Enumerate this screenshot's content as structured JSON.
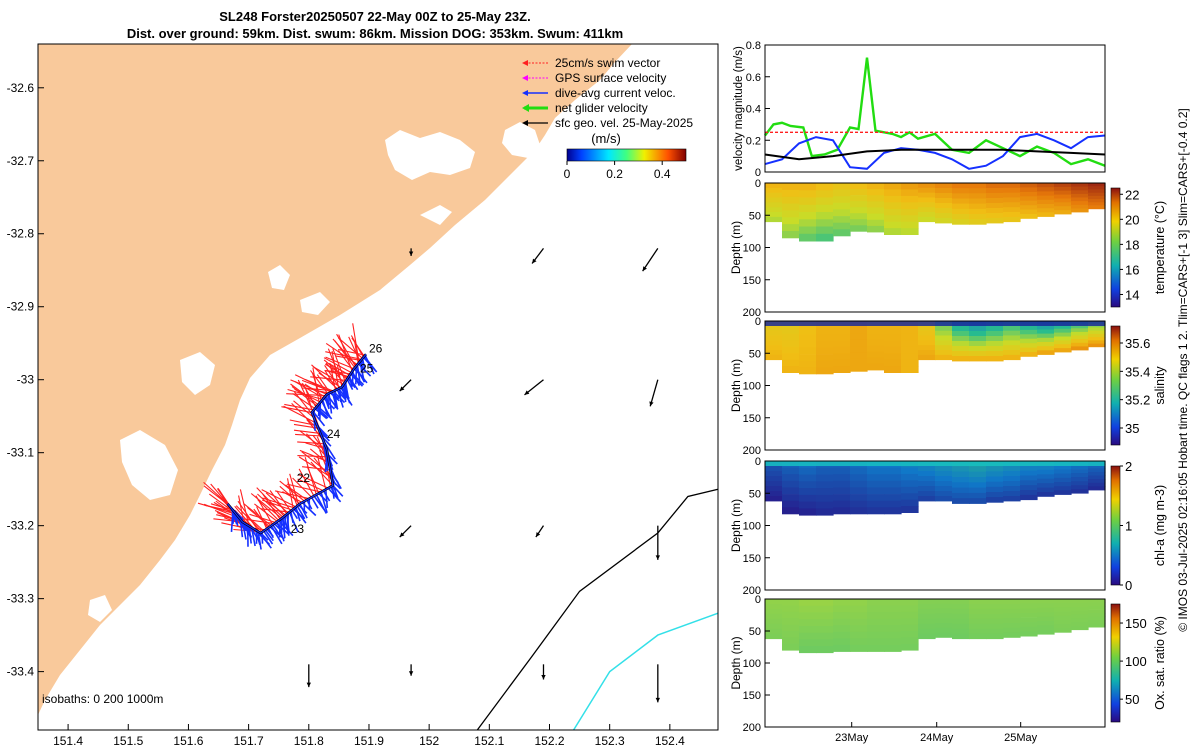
{
  "header": {
    "title_line1": "SL248 Forster20250507 22-May 00Z to 25-May 23Z.",
    "title_line2": "Dist. over ground: 59km. Dist. swum: 86km. Mission DOG: 353km. Swum: 411km"
  },
  "side_note": "© IMOS 03-Jul-2025 02:16:05 Hobart time. QC flags 1  2. Tlim=CARS+[-1 3] Slim=CARS+[-0.4 0.2]",
  "colors": {
    "land": "#F9C99B",
    "glider_swim": "#ff2020",
    "glider_current": "#1530ff",
    "track": "#000000",
    "isobath_200": "#000000",
    "isobath_1000": "#33e0e8",
    "net_velocity": "#22dd11"
  },
  "chart_data": [
    {
      "id": "map",
      "type": "scatter",
      "xlabel": "",
      "ylabel": "",
      "xlim": [
        151.35,
        152.48
      ],
      "ylim": [
        -33.48,
        -32.54
      ],
      "x_ticks": [
        "151.4",
        "151.5",
        "151.6",
        "151.7",
        "151.8",
        "151.9",
        "152",
        "152.1",
        "152.2",
        "152.3",
        "152.4"
      ],
      "y_ticks": [
        "-32.6",
        "-32.7",
        "-32.8",
        "-32.9",
        "-33",
        "-33.1",
        "-33.2",
        "-33.3",
        "-33.4"
      ],
      "legend": {
        "placement": "top-right",
        "entries": [
          "25cm/s swim vector",
          "GPS surface velocity",
          "dive-avg current veloc.",
          "net glider velocity",
          "sfc geo. vel. 25-May-2025"
        ]
      },
      "colorbar": {
        "label": "(m/s)",
        "ticks": [
          "0",
          "0.2",
          "0.4"
        ],
        "range": [
          0,
          0.5
        ]
      },
      "isobaths_label": "isobaths: 0   200  1000m",
      "glider_track": [
        {
          "lon": 151.665,
          "lat": -33.17
        },
        {
          "lon": 151.69,
          "lat": -33.195
        },
        {
          "lon": 151.72,
          "lat": -33.21
        },
        {
          "lon": 151.755,
          "lat": -33.19
        },
        {
          "lon": 151.785,
          "lat": -33.17
        },
        {
          "lon": 151.84,
          "lat": -33.145
        },
        {
          "lon": 151.83,
          "lat": -33.095
        },
        {
          "lon": 151.805,
          "lat": -33.045
        },
        {
          "lon": 151.83,
          "lat": -33.02
        },
        {
          "lon": 151.855,
          "lat": -33.01
        },
        {
          "lon": 151.875,
          "lat": -32.985
        },
        {
          "lon": 151.895,
          "lat": -32.965
        }
      ],
      "day_labels": [
        {
          "label": "22",
          "lon": 151.78,
          "lat": -33.14
        },
        {
          "label": "23",
          "lon": 151.77,
          "lat": -33.21
        },
        {
          "label": "24",
          "lon": 151.83,
          "lat": -33.08
        },
        {
          "label": "25",
          "lon": 151.885,
          "lat": -32.99
        },
        {
          "label": "26",
          "lon": 151.9,
          "lat": -32.963
        }
      ],
      "geo_arrows": [
        {
          "lon": 151.97,
          "lat": -32.82,
          "u": 0.0,
          "v": -0.02
        },
        {
          "lon": 152.19,
          "lat": -32.82,
          "u": -0.03,
          "v": -0.04
        },
        {
          "lon": 152.38,
          "lat": -32.82,
          "u": -0.04,
          "v": -0.06
        },
        {
          "lon": 151.97,
          "lat": -33.0,
          "u": -0.03,
          "v": -0.03
        },
        {
          "lon": 152.19,
          "lat": -33.0,
          "u": -0.05,
          "v": -0.04
        },
        {
          "lon": 152.38,
          "lat": -33.0,
          "u": -0.02,
          "v": -0.07
        },
        {
          "lon": 151.97,
          "lat": -33.2,
          "u": -0.03,
          "v": -0.03
        },
        {
          "lon": 152.19,
          "lat": -33.2,
          "u": -0.02,
          "v": -0.03
        },
        {
          "lon": 152.38,
          "lat": -33.2,
          "u": 0.0,
          "v": -0.09
        },
        {
          "lon": 151.97,
          "lat": -33.39,
          "u": 0.0,
          "v": -0.03
        },
        {
          "lon": 152.19,
          "lat": -33.39,
          "u": 0.0,
          "v": -0.04
        },
        {
          "lon": 152.38,
          "lat": -33.39,
          "u": 0.0,
          "v": -0.1
        },
        {
          "lon": 151.8,
          "lat": -33.39,
          "u": 0.0,
          "v": -0.06
        }
      ],
      "isobath_200": [
        {
          "lon": 152.08,
          "lat": -33.48
        },
        {
          "lon": 152.17,
          "lat": -33.38
        },
        {
          "lon": 152.25,
          "lat": -33.29
        },
        {
          "lon": 152.38,
          "lat": -33.21
        },
        {
          "lon": 152.43,
          "lat": -33.16
        },
        {
          "lon": 152.48,
          "lat": -33.15
        }
      ],
      "isobath_1000": [
        {
          "lon": 152.24,
          "lat": -33.48
        },
        {
          "lon": 152.3,
          "lat": -33.4
        },
        {
          "lon": 152.38,
          "lat": -33.35
        },
        {
          "lon": 152.48,
          "lat": -33.32
        }
      ]
    },
    {
      "id": "velocity",
      "type": "line",
      "ylabel": "velocity magnitude (m/s)",
      "xlim": [
        0,
        4
      ],
      "ylim": [
        0,
        0.8
      ],
      "y_ticks": [
        "0",
        "0.2",
        "0.4",
        "0.6",
        "0.8"
      ],
      "series": [
        {
          "name": "net glider velocity",
          "color": "#22dd11",
          "x": [
            0,
            0.1,
            0.2,
            0.3,
            0.45,
            0.55,
            0.7,
            0.85,
            1.0,
            1.1,
            1.2,
            1.3,
            1.4,
            1.5,
            1.6,
            1.7,
            1.8,
            2.0,
            2.2,
            2.4,
            2.6,
            2.8,
            3.0,
            3.2,
            3.4,
            3.6,
            3.8,
            4.0
          ],
          "y": [
            0.23,
            0.3,
            0.31,
            0.29,
            0.28,
            0.1,
            0.11,
            0.14,
            0.28,
            0.27,
            0.72,
            0.26,
            0.25,
            0.24,
            0.22,
            0.25,
            0.21,
            0.24,
            0.14,
            0.12,
            0.2,
            0.15,
            0.1,
            0.16,
            0.12,
            0.05,
            0.08,
            0.04
          ]
        },
        {
          "name": "dive-avg current veloc.",
          "color": "#1530ff",
          "x": [
            0,
            0.2,
            0.4,
            0.6,
            0.8,
            1.0,
            1.2,
            1.4,
            1.6,
            1.8,
            2.0,
            2.2,
            2.4,
            2.6,
            2.8,
            3.0,
            3.2,
            3.4,
            3.6,
            3.8,
            4.0
          ],
          "y": [
            0.05,
            0.08,
            0.18,
            0.22,
            0.2,
            0.03,
            0.02,
            0.12,
            0.15,
            0.14,
            0.12,
            0.08,
            0.02,
            0.04,
            0.1,
            0.22,
            0.24,
            0.2,
            0.15,
            0.22,
            0.23
          ]
        },
        {
          "name": "swim speed",
          "color": "#000000",
          "x": [
            0,
            0.4,
            0.8,
            1.2,
            1.6,
            2.0,
            2.4,
            2.8,
            3.2,
            3.6,
            4.0
          ],
          "y": [
            0.11,
            0.08,
            0.1,
            0.13,
            0.14,
            0.14,
            0.14,
            0.14,
            0.13,
            0.12,
            0.11
          ]
        },
        {
          "name": "25cm/s reference",
          "color": "#ff2020",
          "x": [
            0,
            4.0
          ],
          "y": [
            0.25,
            0.25
          ]
        }
      ]
    },
    {
      "id": "temperature",
      "type": "heatmap",
      "ylabel": "Depth (m)",
      "colorbar_label": "temperature (°C)",
      "ylim": [
        200,
        0
      ],
      "y_ticks": [
        "0",
        "50",
        "100",
        "150",
        "200"
      ],
      "colorbar_ticks": [
        "14",
        "16",
        "18",
        "20",
        "22"
      ],
      "clim": [
        13,
        22.5
      ],
      "profile_depth": [
        40,
        60,
        85,
        90,
        82,
        75,
        74,
        76,
        80,
        60,
        55,
        62,
        64,
        62,
        60,
        55,
        52,
        48,
        45,
        40,
        38
      ],
      "surface_value": [
        20,
        20,
        20,
        19.8,
        19.6,
        19.8,
        20,
        20.2,
        20.4,
        20.6,
        20.8,
        21,
        21,
        21.2,
        21.2,
        21.4,
        21.6,
        21.8,
        22,
        22.2,
        22.4
      ],
      "bottom_value": [
        18.5,
        18.2,
        17.8,
        17.6,
        17.8,
        18,
        18.2,
        18.5,
        18.6,
        18.8,
        19,
        19.2,
        19.4,
        19.5,
        19.6,
        19.8,
        20,
        20.2,
        20.6,
        21,
        21.4
      ]
    },
    {
      "id": "salinity",
      "type": "heatmap",
      "ylabel": "Depth (m)",
      "colorbar_label": "salinity",
      "ylim": [
        200,
        0
      ],
      "y_ticks": [
        "0",
        "50",
        "100",
        "150",
        "200"
      ],
      "colorbar_ticks": [
        "35",
        "35.2",
        "35.4",
        "35.6"
      ],
      "clim": [
        34.88,
        35.72
      ],
      "profile_depth": [
        40,
        60,
        80,
        82,
        80,
        78,
        76,
        74,
        80,
        60,
        55,
        60,
        62,
        62,
        60,
        55,
        52,
        48,
        45,
        40,
        38
      ],
      "surface_value": [
        35.45,
        35.45,
        35.48,
        35.5,
        35.5,
        35.52,
        35.5,
        35.5,
        35.5,
        35.45,
        35.3,
        35.2,
        35.15,
        35.2,
        35.25,
        35.2,
        35.15,
        35.2,
        35.25,
        35.3,
        35.3
      ],
      "bottom_value": [
        35.5,
        35.5,
        35.5,
        35.52,
        35.52,
        35.52,
        35.52,
        35.52,
        35.5,
        35.52,
        35.5,
        35.5,
        35.5,
        35.5,
        35.5,
        35.5,
        35.52,
        35.52,
        35.55,
        35.55,
        35.55
      ]
    },
    {
      "id": "chl",
      "type": "heatmap",
      "ylabel": "Depth (m)",
      "colorbar_label": "chl-a (mg m-3)",
      "ylim": [
        200,
        0
      ],
      "y_ticks": [
        "0",
        "50",
        "100",
        "150",
        "200"
      ],
      "colorbar_ticks": [
        "0",
        "1",
        "2"
      ],
      "clim": [
        0,
        2
      ],
      "profile_depth": [
        40,
        62,
        82,
        84,
        82,
        82,
        82,
        82,
        80,
        62,
        56,
        62,
        66,
        64,
        62,
        60,
        55,
        52,
        50,
        45,
        40
      ],
      "surface_value": [
        0.35,
        0.4,
        0.45,
        0.4,
        0.4,
        0.45,
        0.5,
        0.5,
        0.55,
        0.6,
        0.65,
        0.7,
        0.75,
        0.7,
        0.65,
        0.6,
        0.6,
        0.55,
        0.5,
        0.45,
        0.4
      ],
      "bottom_value": [
        0.1,
        0.1,
        0.12,
        0.15,
        0.15,
        0.18,
        0.2,
        0.2,
        0.2,
        0.25,
        0.3,
        0.3,
        0.3,
        0.25,
        0.25,
        0.2,
        0.2,
        0.2,
        0.18,
        0.15,
        0.15
      ]
    },
    {
      "id": "oxygen",
      "type": "heatmap",
      "xlabel": "",
      "ylabel": "Depth (m)",
      "colorbar_label": "Ox. sat. ratio (%)",
      "ylim": [
        200,
        0
      ],
      "y_ticks": [
        "0",
        "50",
        "100",
        "150",
        "200"
      ],
      "x_ticks": [
        "23May",
        "24May",
        "25May"
      ],
      "colorbar_ticks": [
        "50",
        "100",
        "150"
      ],
      "clim": [
        20,
        175
      ],
      "profile_depth": [
        40,
        62,
        80,
        84,
        82,
        82,
        82,
        82,
        80,
        62,
        56,
        60,
        62,
        62,
        60,
        58,
        55,
        52,
        48,
        44,
        40
      ],
      "surface_value": [
        105,
        105,
        106,
        106,
        105,
        105,
        104,
        104,
        104,
        103,
        103,
        103,
        104,
        104,
        104,
        104,
        104,
        104,
        104,
        104,
        104
      ],
      "bottom_value": [
        102,
        102,
        100,
        100,
        100,
        101,
        101,
        101,
        101,
        100,
        100,
        100,
        101,
        101,
        101,
        101,
        101,
        102,
        102,
        102,
        102
      ]
    }
  ]
}
